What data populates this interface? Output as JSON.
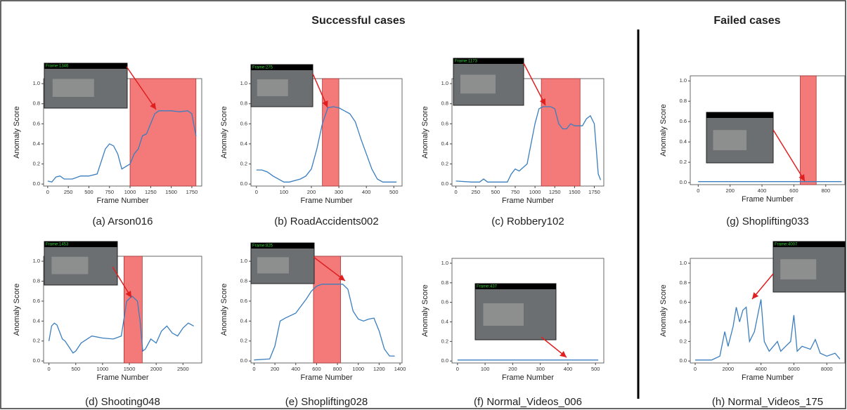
{
  "headings": {
    "successful": "Successful cases",
    "failed": "Failed cases"
  },
  "chart_data": [
    {
      "type": "line",
      "caption": "(a) Arson016",
      "xlabel": "Frame Number",
      "ylabel": "Anomaly Score",
      "frame_label": "Frame:1346",
      "color": "#3a7ebf",
      "region_color": "#f47a7a",
      "x": [
        0,
        50,
        100,
        150,
        200,
        300,
        400,
        500,
        600,
        700,
        750,
        800,
        850,
        900,
        1000,
        1050,
        1100,
        1150,
        1200,
        1250,
        1300,
        1350,
        1500,
        1600,
        1700,
        1750,
        1800
      ],
      "values": [
        0.03,
        0.02,
        0.07,
        0.08,
        0.05,
        0.05,
        0.08,
        0.08,
        0.1,
        0.35,
        0.4,
        0.38,
        0.3,
        0.15,
        0.2,
        0.3,
        0.35,
        0.48,
        0.5,
        0.6,
        0.7,
        0.73,
        0.73,
        0.72,
        0.73,
        0.7,
        0.48
      ],
      "anomaly_region": [
        1000,
        1800
      ],
      "xlim": [
        -50,
        1870
      ],
      "xticks": [
        0,
        250,
        500,
        750,
        1000,
        1250,
        1500,
        1750
      ],
      "ylim": [
        -0.02,
        1.05
      ],
      "yticks": [
        {
          "value": 0,
          "label": "0.0"
        },
        {
          "value": 0.2,
          "label": "0.2"
        },
        {
          "value": 0.4,
          "label": "0.4"
        },
        {
          "value": 0.6,
          "label": "0.6"
        },
        {
          "value": 0.8,
          "label": "0.8"
        },
        {
          "value": 1,
          "label": "1.0"
        }
      ]
    },
    {
      "type": "line",
      "caption": "(b) RoadAccidents002",
      "xlabel": "Frame Number",
      "ylabel": "Anomaly Score",
      "frame_label": "Frame:275",
      "color": "#3a7ebf",
      "region_color": "#f47a7a",
      "x": [
        0,
        20,
        40,
        60,
        100,
        120,
        160,
        180,
        200,
        220,
        240,
        260,
        280,
        300,
        320,
        340,
        360,
        380,
        400,
        420,
        440,
        460,
        510
      ],
      "values": [
        0.14,
        0.14,
        0.12,
        0.08,
        0.02,
        0.02,
        0.05,
        0.08,
        0.15,
        0.35,
        0.6,
        0.76,
        0.77,
        0.76,
        0.73,
        0.7,
        0.62,
        0.45,
        0.3,
        0.15,
        0.05,
        0.02,
        0.02
      ],
      "anomaly_region": [
        240,
        300
      ],
      "xlim": [
        -20,
        530
      ],
      "xticks": [
        0,
        100,
        200,
        300,
        400,
        500
      ],
      "ylim": [
        -0.02,
        1.05
      ],
      "yticks": [
        {
          "value": 0,
          "label": "0.0"
        },
        {
          "value": 0.2,
          "label": "0.2"
        },
        {
          "value": 0.4,
          "label": "0.4"
        },
        {
          "value": 0.6,
          "label": "0.6"
        },
        {
          "value": 0.8,
          "label": "0.8"
        },
        {
          "value": 1,
          "label": "1.0"
        }
      ]
    },
    {
      "type": "line",
      "caption": "(c) Robbery102",
      "xlabel": "Frame Number",
      "ylabel": "Anomaly Score",
      "frame_label": "Frame:1173",
      "color": "#3a7ebf",
      "region_color": "#f47a7a",
      "x": [
        0,
        200,
        300,
        350,
        400,
        500,
        650,
        700,
        750,
        800,
        900,
        1000,
        1050,
        1100,
        1200,
        1250,
        1300,
        1350,
        1400,
        1450,
        1500,
        1600,
        1650,
        1700,
        1750,
        1800,
        1830
      ],
      "values": [
        0.03,
        0.02,
        0.02,
        0.05,
        0.02,
        0.02,
        0.02,
        0.1,
        0.15,
        0.13,
        0.2,
        0.6,
        0.75,
        0.77,
        0.77,
        0.75,
        0.6,
        0.55,
        0.55,
        0.6,
        0.58,
        0.58,
        0.65,
        0.68,
        0.6,
        0.1,
        0.04
      ],
      "anomaly_region": [
        1080,
        1570
      ],
      "xlim": [
        -50,
        1870
      ],
      "xticks": [
        0,
        250,
        500,
        750,
        1000,
        1250,
        1500,
        1750
      ],
      "ylim": [
        -0.02,
        1.05
      ],
      "yticks": [
        {
          "value": 0,
          "label": "0.0"
        },
        {
          "value": 0.2,
          "label": "0.2"
        },
        {
          "value": 0.4,
          "label": "0.4"
        },
        {
          "value": 0.6,
          "label": "0.6"
        },
        {
          "value": 0.8,
          "label": "0.8"
        },
        {
          "value": 1,
          "label": "1.0"
        }
      ]
    },
    {
      "type": "line",
      "caption": "(d) Shooting048",
      "xlabel": "Frame Number",
      "ylabel": "Anomaly Score",
      "frame_label": "Frame:1453",
      "color": "#3a7ebf",
      "region_color": "#f47a7a",
      "x": [
        0,
        50,
        100,
        150,
        250,
        300,
        400,
        450,
        500,
        600,
        800,
        1000,
        1200,
        1350,
        1450,
        1550,
        1650,
        1700,
        1750,
        1800,
        1900,
        2000,
        2100,
        2200,
        2300,
        2400,
        2500,
        2600,
        2700
      ],
      "values": [
        0.2,
        0.35,
        0.38,
        0.36,
        0.22,
        0.2,
        0.12,
        0.08,
        0.1,
        0.18,
        0.25,
        0.23,
        0.22,
        0.25,
        0.6,
        0.65,
        0.6,
        0.4,
        0.1,
        0.12,
        0.22,
        0.18,
        0.3,
        0.35,
        0.28,
        0.25,
        0.33,
        0.38,
        0.35
      ],
      "anomaly_region": [
        1400,
        1740
      ],
      "xlim": [
        -100,
        2850
      ],
      "xticks": [
        0,
        500,
        1000,
        1500,
        2000,
        2500
      ],
      "ylim": [
        -0.02,
        1.05
      ],
      "yticks": [
        {
          "value": 0,
          "label": "0.0"
        },
        {
          "value": 0.2,
          "label": "0.2"
        },
        {
          "value": 0.4,
          "label": "0.4"
        },
        {
          "value": 0.6,
          "label": "0.6"
        },
        {
          "value": 0.8,
          "label": "0.8"
        },
        {
          "value": 1,
          "label": "1.0"
        }
      ]
    },
    {
      "type": "line",
      "caption": "(e) Shoplifting028",
      "xlabel": "Frame Number",
      "ylabel": "Anomaly Score",
      "frame_label": "Frame:825",
      "color": "#3a7ebf",
      "region_color": "#f47a7a",
      "x": [
        0,
        150,
        200,
        250,
        300,
        400,
        450,
        500,
        550,
        600,
        650,
        700,
        800,
        850,
        900,
        950,
        1000,
        1050,
        1100,
        1150,
        1200,
        1250,
        1300,
        1350
      ],
      "values": [
        0.01,
        0.02,
        0.15,
        0.4,
        0.43,
        0.48,
        0.55,
        0.62,
        0.7,
        0.75,
        0.77,
        0.77,
        0.77,
        0.77,
        0.72,
        0.5,
        0.42,
        0.4,
        0.42,
        0.43,
        0.3,
        0.12,
        0.05,
        0.05
      ],
      "anomaly_region": [
        570,
        830
      ],
      "xlim": [
        -30,
        1420
      ],
      "xticks": [
        0,
        200,
        400,
        600,
        800,
        1000,
        1200,
        1400
      ],
      "ylim": [
        -0.02,
        1.05
      ],
      "yticks": [
        {
          "value": 0,
          "label": "0.0"
        },
        {
          "value": 0.2,
          "label": "0.2"
        },
        {
          "value": 0.4,
          "label": "0.4"
        },
        {
          "value": 0.6,
          "label": "0.6"
        },
        {
          "value": 0.8,
          "label": "0.8"
        },
        {
          "value": 1,
          "label": "1.0"
        }
      ]
    },
    {
      "type": "line",
      "caption": "(f) Normal_Videos_006",
      "xlabel": "Frame Number",
      "ylabel": "Anomaly Score",
      "frame_label": "Frame:437",
      "color": "#3a7ebf",
      "x": [
        0,
        100,
        200,
        300,
        400,
        510
      ],
      "values": [
        0.01,
        0.01,
        0.01,
        0.01,
        0.01,
        0.01
      ],
      "xlim": [
        -20,
        530
      ],
      "xticks": [
        0,
        100,
        200,
        300,
        400,
        500
      ],
      "ylim": [
        -0.02,
        1.05
      ],
      "yticks": [
        {
          "value": 0,
          "label": "0.0"
        },
        {
          "value": 0.2,
          "label": "0.2"
        },
        {
          "value": 0.4,
          "label": "0.4"
        },
        {
          "value": 0.6,
          "label": "0.6"
        },
        {
          "value": 0.8,
          "label": "0.8"
        },
        {
          "value": 1,
          "label": "1.0"
        }
      ]
    },
    {
      "type": "line",
      "caption": "(g) Shoplifting033",
      "xlabel": "Frame Number",
      "ylabel": "Anomaly Score",
      "color": "#3a7ebf",
      "region_color": "#f47a7a",
      "x": [
        0,
        200,
        400,
        600,
        800,
        900
      ],
      "values": [
        0.01,
        0.01,
        0.01,
        0.01,
        0.01,
        0.01
      ],
      "anomaly_region": [
        640,
        740
      ],
      "xlim": [
        -50,
        920
      ],
      "xticks": [
        0,
        200,
        400,
        600,
        800
      ],
      "ylim": [
        -0.02,
        1.05
      ],
      "yticks": [
        {
          "value": 0,
          "label": "0.0"
        },
        {
          "value": 0.2,
          "label": "0.2"
        },
        {
          "value": 0.4,
          "label": "0.4"
        },
        {
          "value": 0.6,
          "label": "0.6"
        },
        {
          "value": 0.8,
          "label": "0.8"
        },
        {
          "value": 1,
          "label": "1.0"
        }
      ]
    },
    {
      "type": "line",
      "caption": "(h) Normal_Videos_175",
      "xlabel": "Frame Number",
      "ylabel": "Anomaly Score",
      "frame_label": "Frame:4007",
      "color": "#3a7ebf",
      "x": [
        0,
        1000,
        1500,
        1800,
        2000,
        2300,
        2500,
        2700,
        2900,
        3100,
        3300,
        3600,
        3900,
        4000,
        4200,
        4500,
        5000,
        5200,
        5500,
        5800,
        6000,
        6200,
        6500,
        7000,
        7300,
        7600,
        8000,
        8500,
        8800
      ],
      "values": [
        0.01,
        0.01,
        0.05,
        0.3,
        0.15,
        0.35,
        0.55,
        0.4,
        0.52,
        0.55,
        0.2,
        0.3,
        0.55,
        0.63,
        0.2,
        0.1,
        0.2,
        0.1,
        0.15,
        0.2,
        0.47,
        0.1,
        0.15,
        0.12,
        0.22,
        0.08,
        0.05,
        0.08,
        0.02
      ],
      "xlim": [
        -300,
        9100
      ],
      "xticks": [
        0,
        2000,
        4000,
        6000,
        8000
      ],
      "ylim": [
        -0.02,
        1.05
      ],
      "yticks": [
        {
          "value": 0,
          "label": "0.0"
        },
        {
          "value": 0.2,
          "label": "0.2"
        },
        {
          "value": 0.4,
          "label": "0.4"
        },
        {
          "value": 0.6,
          "label": "0.6"
        },
        {
          "value": 0.8,
          "label": "0.8"
        },
        {
          "value": 1,
          "label": "1.0"
        }
      ]
    }
  ]
}
